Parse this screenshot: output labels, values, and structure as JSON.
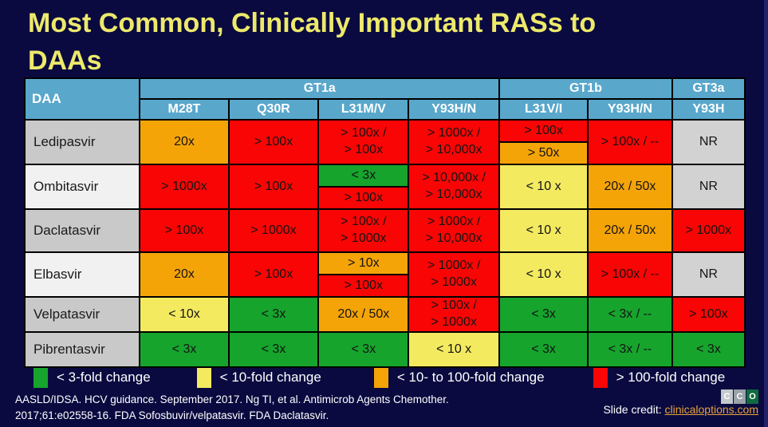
{
  "slide": {
    "title": "Most Common, Clinically Important RASs to\nDAAs",
    "background": "#0A0A40",
    "title_color": "#EDE96B"
  },
  "palette": {
    "green": "#16A42D",
    "yellow": "#F3EA60",
    "orange": "#F5A408",
    "red": "#F90505",
    "nr": "#D2D2D2",
    "label_gray": "#C9C9C9",
    "label_light": "#F1F1F1",
    "header_blue": "#59A7CB",
    "link_gold": "#E8A33D"
  },
  "table": {
    "corner_label": "DAA",
    "col_widths_pct": [
      16.0,
      12.3,
      12.5,
      12.5,
      12.6,
      12.3,
      11.7,
      10.1
    ],
    "groups": [
      {
        "label": "GT1a",
        "span": 4
      },
      {
        "label": "GT1b",
        "span": 2
      },
      {
        "label": "GT3a",
        "span": 1
      }
    ],
    "mutations": [
      "M28T",
      "Q30R",
      "L31M/V",
      "Y93H/N",
      "L31V/I",
      "Y93H/N",
      "Y93H"
    ],
    "rows": [
      {
        "daa": "Ledipasvir",
        "label_bg": "label_gray",
        "cells": [
          {
            "text": "20x",
            "color": "orange"
          },
          {
            "text": "> 100x",
            "color": "red"
          },
          {
            "text": "> 100x /\n> 100x",
            "color": "red"
          },
          {
            "text": "> 1000x /\n> 10,000x",
            "color": "red"
          },
          {
            "split": [
              {
                "text": "> 100x",
                "color": "red"
              },
              {
                "text": "> 50x",
                "color": "orange"
              }
            ]
          },
          {
            "text": "> 100x / --",
            "color": "red"
          },
          {
            "text": "NR",
            "color": "nr"
          }
        ]
      },
      {
        "daa": "Ombitasvir",
        "label_bg": "label_light",
        "cells": [
          {
            "text": "> 1000x",
            "color": "red"
          },
          {
            "text": "> 100x",
            "color": "red"
          },
          {
            "split": [
              {
                "text": "< 3x",
                "color": "green"
              },
              {
                "text": "> 100x",
                "color": "red"
              }
            ]
          },
          {
            "text": "> 10,000x /\n> 10,000x",
            "color": "red"
          },
          {
            "text": "< 10 x",
            "color": "yellow"
          },
          {
            "text": "20x / 50x",
            "color": "orange"
          },
          {
            "text": "NR",
            "color": "nr"
          }
        ]
      },
      {
        "daa": "Daclatasvir",
        "label_bg": "label_gray",
        "cells": [
          {
            "text": "> 100x",
            "color": "red"
          },
          {
            "text": "> 1000x",
            "color": "red"
          },
          {
            "text": "> 100x /\n> 1000x",
            "color": "red"
          },
          {
            "text": "> 1000x /\n> 10,000x",
            "color": "red"
          },
          {
            "text": "< 10 x",
            "color": "yellow"
          },
          {
            "text": "20x / 50x",
            "color": "orange"
          },
          {
            "text": "> 1000x",
            "color": "red"
          }
        ]
      },
      {
        "daa": "Elbasvir",
        "label_bg": "label_light",
        "cells": [
          {
            "text": "20x",
            "color": "orange"
          },
          {
            "text": "> 100x",
            "color": "red"
          },
          {
            "split": [
              {
                "text": "> 10x",
                "color": "orange"
              },
              {
                "text": "> 100x",
                "color": "red"
              }
            ]
          },
          {
            "text": "> 1000x /\n> 1000x",
            "color": "red"
          },
          {
            "text": "< 10 x",
            "color": "yellow"
          },
          {
            "text": "> 100x / --",
            "color": "red"
          },
          {
            "text": "NR",
            "color": "nr"
          }
        ]
      },
      {
        "daa": "Velpatasvir",
        "label_bg": "label_gray",
        "cells": [
          {
            "text": "< 10x",
            "color": "yellow"
          },
          {
            "text": "< 3x",
            "color": "green"
          },
          {
            "text": "20x / 50x",
            "color": "orange"
          },
          {
            "text": "> 100x /\n> 1000x",
            "color": "red"
          },
          {
            "text": "< 3x",
            "color": "green"
          },
          {
            "text": "< 3x / --",
            "color": "green"
          },
          {
            "text": "> 100x",
            "color": "red"
          }
        ]
      },
      {
        "daa": "Pibrentasvir",
        "label_bg": "label_gray",
        "cells": [
          {
            "text": "< 3x",
            "color": "green"
          },
          {
            "text": "< 3x",
            "color": "green"
          },
          {
            "text": "< 3x",
            "color": "green"
          },
          {
            "text": "< 10 x",
            "color": "yellow"
          },
          {
            "text": "< 3x",
            "color": "green"
          },
          {
            "text": "< 3x / --",
            "color": "green"
          },
          {
            "text": "< 3x",
            "color": "green"
          }
        ]
      }
    ]
  },
  "legend": [
    {
      "color": "green",
      "label": "< 3-fold change"
    },
    {
      "color": "yellow",
      "label": "< 10-fold change"
    },
    {
      "color": "orange",
      "label": "< 10- to 100-fold change"
    },
    {
      "color": "red",
      "label": "> 100-fold change"
    }
  ],
  "footer": {
    "citation": "AASLD/IDSA. HCV guidance. September 2017. Ng TI, et al. Antimicrob Agents Chemother.\n2017;61:e02558-16. FDA Sofosbuvir/velpatasvir. FDA Daclatasvir.",
    "credit_label": "Slide credit: ",
    "credit_link": "clinicaloptions.com",
    "logo_squares": [
      {
        "letter": "C",
        "bg": "#C4C9CE"
      },
      {
        "letter": "C",
        "bg": "#9BA2A9"
      },
      {
        "letter": "O",
        "bg": "#0F6B3F"
      }
    ]
  }
}
